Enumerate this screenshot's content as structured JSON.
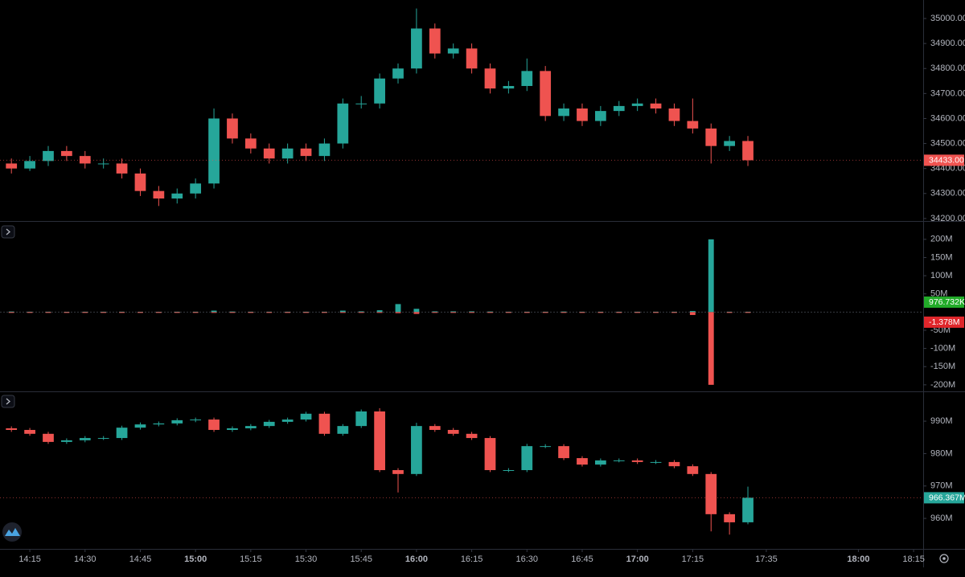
{
  "time_axis": {
    "xlim": [
      846.9,
      1097.6
    ],
    "xticks": [
      {
        "value": 855,
        "label": "14:15"
      },
      {
        "value": 870,
        "label": "14:30"
      },
      {
        "value": 885,
        "label": "14:45"
      },
      {
        "value": 900,
        "label": "15:00"
      },
      {
        "value": 915,
        "label": "15:15"
      },
      {
        "value": 930,
        "label": "15:30"
      },
      {
        "value": 945,
        "label": "15:45"
      },
      {
        "value": 960,
        "label": "16:00"
      },
      {
        "value": 975,
        "label": "16:15"
      },
      {
        "value": 990,
        "label": "16:30"
      },
      {
        "value": 1005,
        "label": "16:45"
      },
      {
        "value": 1020,
        "label": "17:00"
      },
      {
        "value": 1035,
        "label": "17:15"
      },
      {
        "value": 1055,
        "label": "17:35"
      },
      {
        "value": 1080,
        "label": "18:00"
      },
      {
        "value": 1095,
        "label": "18:15"
      }
    ]
  },
  "chart_data": [
    {
      "type": "candlestick",
      "x": [
        850,
        855,
        860,
        865,
        870,
        875,
        880,
        885,
        890,
        895,
        900,
        905,
        910,
        915,
        920,
        925,
        930,
        935,
        940,
        945,
        950,
        955,
        960,
        965,
        970,
        975,
        980,
        985,
        990,
        995,
        1000,
        1005,
        1010,
        1015,
        1020,
        1025,
        1030,
        1035,
        1040,
        1045,
        1050
      ],
      "open": [
        34420,
        34400,
        34430,
        34470,
        34450,
        34420,
        34420,
        34380,
        34310,
        34280,
        34300,
        34340,
        34600,
        34520,
        34480,
        34440,
        34480,
        34450,
        34500,
        34660,
        34660,
        34760,
        34800,
        34960,
        34860,
        34880,
        34800,
        34720,
        34730,
        34790,
        34610,
        34640,
        34590,
        34630,
        34650,
        34660,
        34640,
        34590,
        34560,
        34490,
        34510
      ],
      "high": [
        34440,
        34450,
        34490,
        34490,
        34470,
        34440,
        34440,
        34400,
        34330,
        34320,
        34360,
        34640,
        34620,
        34540,
        34500,
        34500,
        34500,
        34520,
        34680,
        34690,
        34780,
        34820,
        35040,
        34980,
        34900,
        34900,
        34820,
        34750,
        34840,
        34810,
        34660,
        34660,
        34650,
        34670,
        34680,
        34680,
        34660,
        34680,
        34580,
        34530,
        34530
      ],
      "low": [
        34380,
        34390,
        34410,
        34430,
        34400,
        34400,
        34360,
        34290,
        34250,
        34260,
        34280,
        34320,
        34500,
        34460,
        34420,
        34420,
        34430,
        34430,
        34480,
        34640,
        34640,
        34740,
        34780,
        34840,
        34840,
        34780,
        34700,
        34700,
        34710,
        34590,
        34590,
        34570,
        34570,
        34610,
        34630,
        34620,
        34570,
        34540,
        34420,
        34470,
        34410
      ],
      "close": [
        34400,
        34430,
        34470,
        34450,
        34420,
        34420,
        34380,
        34310,
        34280,
        34300,
        34340,
        34600,
        34520,
        34480,
        34440,
        34480,
        34450,
        34500,
        34660,
        34660,
        34760,
        34800,
        34960,
        34860,
        34880,
        34800,
        34720,
        34730,
        34790,
        34610,
        34640,
        34590,
        34630,
        34650,
        34660,
        34640,
        34590,
        34560,
        34490,
        34510,
        34433
      ],
      "last_label": "34433.00",
      "up_color": "#26a69a",
      "down_color": "#ef5350",
      "ylim": [
        34190,
        35074
      ],
      "yticks": [
        {
          "value": 34200,
          "label": "34200.00"
        },
        {
          "value": 34300,
          "label": "34300.00"
        },
        {
          "value": 34400,
          "label": "34400.00"
        },
        {
          "value": 34500,
          "label": "34500.00"
        },
        {
          "value": 34600,
          "label": "34600.00"
        },
        {
          "value": 34700,
          "label": "34700.00"
        },
        {
          "value": 34800,
          "label": "34800.00"
        },
        {
          "value": 34900,
          "label": "34900.00"
        },
        {
          "value": 35000,
          "label": "35000.00"
        }
      ],
      "grid": false
    },
    {
      "type": "bar",
      "x": [
        850,
        855,
        860,
        865,
        870,
        875,
        880,
        885,
        890,
        895,
        900,
        905,
        910,
        915,
        920,
        925,
        930,
        935,
        940,
        945,
        950,
        955,
        960,
        965,
        970,
        975,
        980,
        985,
        990,
        995,
        1000,
        1005,
        1010,
        1015,
        1020,
        1025,
        1030,
        1035,
        1040,
        1045,
        1050
      ],
      "series": [
        {
          "color": "#26a69a",
          "badge_color": "#22ab29",
          "last_label": "976.732K",
          "values": [
            1.5,
            1,
            1,
            0.8,
            1,
            1,
            1,
            0.8,
            0.8,
            1,
            1,
            4,
            1.5,
            1,
            1,
            1,
            1,
            1,
            4,
            2,
            5,
            22,
            9,
            2,
            2,
            2,
            1.5,
            1,
            1,
            1,
            1.5,
            1,
            1,
            1,
            1,
            1,
            1,
            3,
            200,
            1,
            0.976732
          ]
        },
        {
          "color": "#ef5350",
          "badge_color": "#e0262b",
          "last_label": "-1.378M",
          "values": [
            -1,
            -1,
            -1.5,
            -1,
            -1,
            -1,
            -1,
            -1,
            -1,
            -1,
            -1,
            -1.5,
            -1,
            -1,
            -1,
            -1,
            -1,
            -1,
            -1,
            -1,
            -1.5,
            -3,
            -5,
            -2,
            -1,
            -1,
            -1,
            -1,
            -1,
            -1,
            -1,
            -1,
            -1,
            -1,
            -1,
            -1,
            -1,
            -8,
            -200,
            -1,
            -1.378
          ]
        }
      ],
      "ylim": [
        -218,
        246
      ],
      "yticks": [
        {
          "value": -200,
          "label": "-200M"
        },
        {
          "value": -150,
          "label": "-150M"
        },
        {
          "value": -100,
          "label": "-100M"
        },
        {
          "value": -50,
          "label": "-50M"
        },
        {
          "value": 50,
          "label": "50M"
        },
        {
          "value": 100,
          "label": "100M"
        },
        {
          "value": 150,
          "label": "150M"
        },
        {
          "value": 200,
          "label": "200M"
        }
      ],
      "grid": false
    },
    {
      "type": "candlestick",
      "x": [
        850,
        855,
        860,
        865,
        870,
        875,
        880,
        885,
        890,
        895,
        900,
        905,
        910,
        915,
        920,
        925,
        930,
        935,
        940,
        945,
        950,
        955,
        960,
        965,
        970,
        975,
        980,
        985,
        990,
        995,
        1000,
        1005,
        1010,
        1015,
        1020,
        1025,
        1030,
        1035,
        1040,
        1045,
        1050
      ],
      "open": [
        987.8,
        987.3,
        986.1,
        983.6,
        984.1,
        984.8,
        984.8,
        988.0,
        989.0,
        989.3,
        990.3,
        990.5,
        987.3,
        987.8,
        988.5,
        989.8,
        990.5,
        992.3,
        986.1,
        988.5,
        993.0,
        974.9,
        973.7,
        988.5,
        987.3,
        986.1,
        984.8,
        974.9,
        974.9,
        982.3,
        982.3,
        978.6,
        976.6,
        977.9,
        977.9,
        977.4,
        977.4,
        976.1,
        973.7,
        961.3,
        958.8
      ],
      "high": [
        988.4,
        987.9,
        986.7,
        984.7,
        985.4,
        985.4,
        988.6,
        989.6,
        989.9,
        990.9,
        991.1,
        991.1,
        988.4,
        989.1,
        990.4,
        991.1,
        992.9,
        992.9,
        989.1,
        993.6,
        994.0,
        975.5,
        989.5,
        989.1,
        987.9,
        986.7,
        985.4,
        975.5,
        983.0,
        982.9,
        982.9,
        979.2,
        978.5,
        978.5,
        978.5,
        978.0,
        978.0,
        976.7,
        974.3,
        961.9,
        969.8
      ],
      "low": [
        986.7,
        985.5,
        983.0,
        983.0,
        983.5,
        984.2,
        984.2,
        987.4,
        988.4,
        988.7,
        989.7,
        986.7,
        986.7,
        987.2,
        987.9,
        989.2,
        989.9,
        985.5,
        985.5,
        987.9,
        974.3,
        968.0,
        973.1,
        986.7,
        985.5,
        984.2,
        974.3,
        974.3,
        974.3,
        981.7,
        978.0,
        976.0,
        976.0,
        977.3,
        976.8,
        976.8,
        975.5,
        973.1,
        956.0,
        955.0,
        958.2
      ],
      "close": [
        987.3,
        986.1,
        983.6,
        984.1,
        984.8,
        984.8,
        988.0,
        989.0,
        989.3,
        990.3,
        990.5,
        987.3,
        987.8,
        988.5,
        989.8,
        990.5,
        992.3,
        986.1,
        988.5,
        993.0,
        974.9,
        973.7,
        988.5,
        987.3,
        986.1,
        984.8,
        974.9,
        974.9,
        982.3,
        982.3,
        978.6,
        976.6,
        977.9,
        977.9,
        977.4,
        977.4,
        976.1,
        973.7,
        961.3,
        958.8,
        966.367
      ],
      "last_label": "966.367M",
      "up_color": "#26a69a",
      "down_color": "#ef5350",
      "ylim": [
        950.6,
        998.7
      ],
      "yticks": [
        {
          "value": 960,
          "label": "960M"
        },
        {
          "value": 970,
          "label": "970M"
        },
        {
          "value": 980,
          "label": "980M"
        },
        {
          "value": 990,
          "label": "990M"
        }
      ],
      "grid": false
    }
  ]
}
